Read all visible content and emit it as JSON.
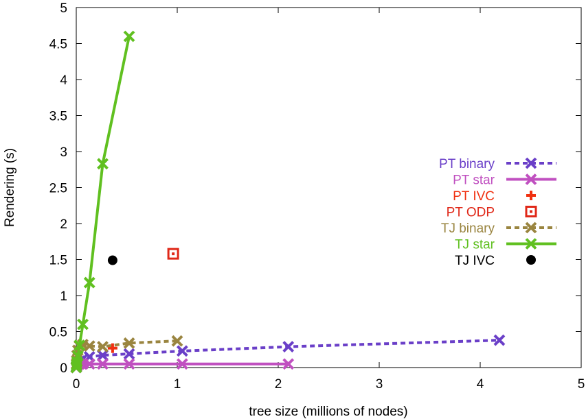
{
  "chart_data": {
    "type": "line",
    "title": "",
    "xlabel": "tree size (millions of nodes)",
    "ylabel": "Rendering (s)",
    "xlim": [
      0,
      5
    ],
    "ylim": [
      0,
      5
    ],
    "xticks": [
      "0",
      "1",
      "2",
      "3",
      "4",
      "5"
    ],
    "yticks": [
      "0",
      "0.5",
      "1",
      "1.5",
      "2",
      "2.5",
      "3",
      "3.5",
      "4",
      "4.5",
      "5"
    ],
    "grid": false,
    "legend_position": "right",
    "series": [
      {
        "name": "PT binary",
        "color": "#6a3fc8",
        "style": "dotted",
        "marker": "x",
        "x": [
          0,
          0.002,
          0.004,
          0.008,
          0.016,
          0.032,
          0.065,
          0.131,
          0.262,
          0.524,
          1.05,
          2.1,
          4.19
        ],
        "y": [
          0.0,
          0.01,
          0.02,
          0.04,
          0.06,
          0.09,
          0.12,
          0.15,
          0.17,
          0.19,
          0.23,
          0.29,
          0.38
        ]
      },
      {
        "name": "PT star",
        "color": "#c050c0",
        "style": "solid",
        "marker": "x",
        "x": [
          0,
          0.002,
          0.004,
          0.008,
          0.016,
          0.032,
          0.065,
          0.131,
          0.262,
          0.524,
          1.05,
          2.1
        ],
        "y": [
          0.0,
          0.01,
          0.02,
          0.03,
          0.04,
          0.05,
          0.05,
          0.05,
          0.05,
          0.05,
          0.05,
          0.05
        ]
      },
      {
        "name": "PT IVC",
        "color": "#f03010",
        "style": "none",
        "marker": "plus",
        "x": [
          0.36
        ],
        "y": [
          0.27
        ]
      },
      {
        "name": "PT ODP",
        "color": "#e02818",
        "style": "none",
        "marker": "square",
        "x": [
          0.96
        ],
        "y": [
          1.58
        ]
      },
      {
        "name": "TJ binary",
        "color": "#9a8540",
        "style": "dotted",
        "marker": "x",
        "x": [
          0,
          0.002,
          0.004,
          0.008,
          0.016,
          0.032,
          0.065,
          0.131,
          0.262,
          0.524,
          1.0
        ],
        "y": [
          0.0,
          0.05,
          0.1,
          0.17,
          0.24,
          0.3,
          0.32,
          0.3,
          0.29,
          0.34,
          0.37
        ]
      },
      {
        "name": "TJ star",
        "color": "#60c020",
        "style": "solid",
        "marker": "x",
        "x": [
          0,
          0.002,
          0.004,
          0.008,
          0.016,
          0.032,
          0.065,
          0.131,
          0.262,
          0.524
        ],
        "y": [
          0.0,
          0.02,
          0.04,
          0.08,
          0.16,
          0.31,
          0.6,
          1.18,
          2.83,
          4.6
        ]
      },
      {
        "name": "TJ IVC",
        "color": "#000000",
        "style": "none",
        "marker": "circle",
        "x": [
          0.36
        ],
        "y": [
          1.49
        ]
      }
    ]
  }
}
